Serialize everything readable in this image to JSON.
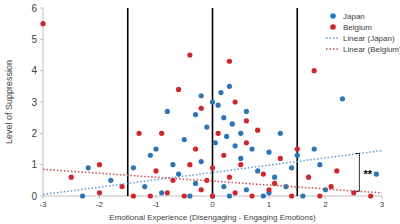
{
  "chart_data": {
    "type": "scatter",
    "x_label": "Emotional Experience (Disengaging - Engaging Emotions)",
    "y_label": "Level of Suppression",
    "xlim": [
      -3,
      3
    ],
    "xticks": [
      -3,
      -2,
      -1,
      0,
      1,
      2,
      3
    ],
    "ylim": [
      0,
      6
    ],
    "yticks": [
      0,
      1,
      2,
      3,
      4,
      5,
      6
    ],
    "grid": false,
    "legend": "top-right",
    "vlines": [
      -1.5,
      0,
      1.5
    ],
    "annotations": [
      {
        "text": "**",
        "x": 2.6,
        "y": 0.75
      }
    ],
    "series": [
      {
        "name": "Japan",
        "type": "scatter",
        "color": "#2e75b6",
        "marker": "circle",
        "x": [
          2.3,
          2.9,
          0.3,
          0.15,
          -0.2,
          0,
          0.1,
          -0.3,
          0.2,
          0.35,
          -0.1,
          0.5,
          0.25,
          -0.5,
          0.7,
          1.0,
          1.2,
          1.5,
          1.9,
          -0.8,
          -1.0,
          -1.1,
          -1.4,
          -1.8,
          -2.2,
          -2.3,
          0.5,
          0.8,
          1.1,
          -0.6,
          -0.3,
          0.2,
          0.6,
          1.0,
          1.6,
          2.0,
          -0.9,
          -0.4,
          0.0,
          0.3,
          0.9,
          1.3,
          -1.2,
          1.8,
          0.4,
          -0.2,
          0.05,
          0.6,
          1.4,
          -0.7
        ],
        "values": [
          3.1,
          0.7,
          3.5,
          3.3,
          3.2,
          3.0,
          2.9,
          2.6,
          2.5,
          2.3,
          2.2,
          2.0,
          1.9,
          1.8,
          1.5,
          1.4,
          2.0,
          1.3,
          1.0,
          2.7,
          1.5,
          1.3,
          0.9,
          0.5,
          0.9,
          0.0,
          1.2,
          0.8,
          0.6,
          0.7,
          0.4,
          0.3,
          0.2,
          0.1,
          0.0,
          0.2,
          0.1,
          0.0,
          0.0,
          0.0,
          0.0,
          0.3,
          0.3,
          1.5,
          1.6,
          1.1,
          1.7,
          2.7,
          0.9,
          1.0
        ]
      },
      {
        "name": "Belgium",
        "type": "scatter",
        "color": "#d0262b",
        "marker": "circle",
        "x": [
          -3.0,
          -0.4,
          0.3,
          1.8,
          -0.6,
          0.4,
          -0.2,
          0.6,
          0.8,
          0.1,
          -0.9,
          -1.3,
          -2.0,
          -2.5,
          -2.0,
          -1.6,
          -1.0,
          -0.7,
          -0.3,
          0.2,
          0.5,
          0.9,
          1.2,
          1.5,
          1.7,
          2.1,
          2.5,
          2.8,
          1.4,
          1.0,
          0.7,
          0.4,
          0.0,
          -0.2,
          -0.5,
          -0.8,
          -1.1,
          -1.4,
          0.3,
          0.0,
          -0.4,
          0.6,
          1.1,
          -0.1,
          2.2,
          1.9
        ],
        "values": [
          5.5,
          4.5,
          4.3,
          4.0,
          3.4,
          3.0,
          2.8,
          2.4,
          2.1,
          2.0,
          2.0,
          2.0,
          1.0,
          0.6,
          0.1,
          0.3,
          0.8,
          0.5,
          1.5,
          1.3,
          1.0,
          0.7,
          1.2,
          1.5,
          0.6,
          0.3,
          0.1,
          0.0,
          0.0,
          0.2,
          0.0,
          0.1,
          0.0,
          0.2,
          0.0,
          0.1,
          0.0,
          0.0,
          0.6,
          0.9,
          1.0,
          1.7,
          0.4,
          0.5,
          0.8,
          0.0
        ]
      },
      {
        "name": "Linear (Japan)",
        "type": "line",
        "color": "#5b9bd5",
        "line_style": "dotted",
        "x": [
          -3,
          3
        ],
        "values": [
          0.05,
          1.45
        ]
      },
      {
        "name": "Linear (Belgium)",
        "type": "line",
        "color": "#c0504d",
        "line_style": "dotted",
        "x": [
          -3,
          3
        ],
        "values": [
          0.85,
          0.1
        ]
      }
    ]
  }
}
